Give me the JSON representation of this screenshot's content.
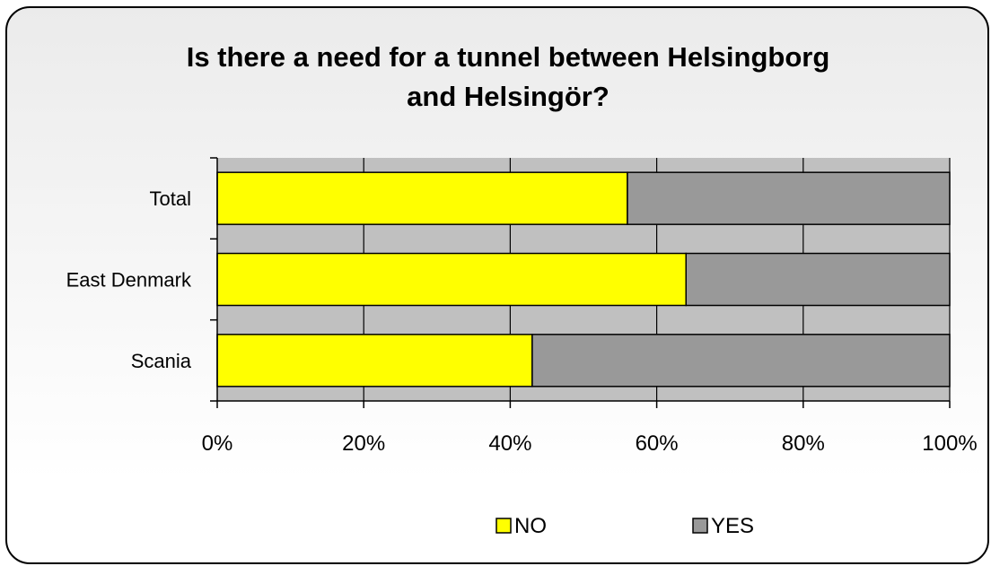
{
  "chart_data": {
    "type": "bar",
    "orientation": "horizontal",
    "stacked": "percent",
    "title": "Is there a need for a tunnel between Helsingborg and Helsingör?",
    "title_lines": [
      "Is there a need for a tunnel between Helsingborg",
      "and Helsingör?"
    ],
    "categories": [
      "Total",
      "East Denmark",
      "Scania"
    ],
    "series": [
      {
        "name": "NO",
        "color": "#ffff00",
        "values": [
          56,
          64,
          43
        ]
      },
      {
        "name": "YES",
        "color": "#999999",
        "values": [
          44,
          36,
          57
        ]
      }
    ],
    "x_ticks": [
      "0%",
      "20%",
      "40%",
      "60%",
      "80%",
      "100%"
    ],
    "xlim": [
      0,
      100
    ],
    "grid": true,
    "plot_background": "#c0c0c0",
    "legend": {
      "position": "bottom",
      "entries": [
        "NO",
        "YES"
      ]
    }
  }
}
